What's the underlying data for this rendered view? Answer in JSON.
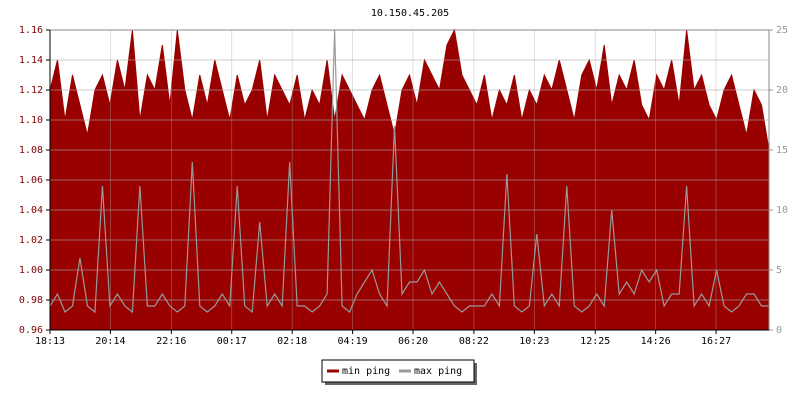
{
  "chart_data": {
    "type": "area-line",
    "title": "10.150.45.205",
    "x": [
      0,
      15,
      30,
      45,
      60,
      75,
      90,
      105,
      120,
      135,
      150,
      165,
      180,
      195,
      210,
      225,
      240,
      255,
      270,
      285,
      300,
      315,
      330,
      345,
      360,
      375,
      390,
      405,
      420,
      435,
      450,
      465,
      480,
      495,
      510,
      525,
      540,
      555,
      570,
      585,
      600,
      615,
      630,
      645,
      660,
      675,
      690,
      705,
      720,
      735,
      750,
      765,
      780,
      795,
      810,
      825,
      840,
      855,
      870,
      885,
      900,
      915,
      930,
      945,
      960,
      975,
      990,
      1005,
      1020,
      1035,
      1050,
      1065,
      1080,
      1095,
      1110,
      1125,
      1140,
      1155,
      1170,
      1185,
      1200,
      1215,
      1230,
      1245,
      1260,
      1275,
      1290,
      1305,
      1320,
      1335,
      1350,
      1365,
      1380,
      1395,
      1410,
      1425,
      1440
    ],
    "xlim": [
      0,
      1440
    ],
    "xticks": [
      {
        "value": 0,
        "label": "18:13"
      },
      {
        "value": 121,
        "label": "20:14"
      },
      {
        "value": 243,
        "label": "22:16"
      },
      {
        "value": 364,
        "label": "00:17"
      },
      {
        "value": 485,
        "label": "02:18"
      },
      {
        "value": 606,
        "label": "04:19"
      },
      {
        "value": 727,
        "label": "06:20"
      },
      {
        "value": 849,
        "label": "08:22"
      },
      {
        "value": 970,
        "label": "10:23"
      },
      {
        "value": 1092,
        "label": "12:25"
      },
      {
        "value": 1213,
        "label": "14:26"
      },
      {
        "value": 1334,
        "label": "16:27"
      }
    ],
    "ylim": [
      0.96,
      1.16
    ],
    "yticks": [
      0.96,
      0.98,
      {
        "value": 1,
        "label": "1.00"
      },
      1.02,
      1.04,
      1.06,
      1.08,
      {
        "value": 1.1,
        "label": "1.10"
      },
      1.12,
      1.14,
      1.16
    ],
    "y2lim": [
      0,
      25
    ],
    "y2ticks": [
      0,
      5,
      10,
      15,
      20,
      25
    ],
    "grid": true,
    "legend": "bottom",
    "series": [
      {
        "name": "min ping",
        "color": "#990000",
        "kind": "area",
        "values": [
          1.12,
          1.14,
          1.1,
          1.13,
          1.11,
          1.09,
          1.12,
          1.13,
          1.11,
          1.14,
          1.12,
          1.16,
          1.1,
          1.13,
          1.12,
          1.15,
          1.11,
          1.16,
          1.12,
          1.1,
          1.13,
          1.11,
          1.14,
          1.12,
          1.1,
          1.13,
          1.11,
          1.12,
          1.14,
          1.1,
          1.13,
          1.12,
          1.11,
          1.13,
          1.1,
          1.12,
          1.11,
          1.14,
          1.1,
          1.13,
          1.12,
          1.11,
          1.1,
          1.12,
          1.13,
          1.11,
          1.09,
          1.12,
          1.13,
          1.11,
          1.14,
          1.13,
          1.12,
          1.15,
          1.16,
          1.13,
          1.12,
          1.11,
          1.13,
          1.1,
          1.12,
          1.11,
          1.13,
          1.1,
          1.12,
          1.11,
          1.13,
          1.12,
          1.14,
          1.12,
          1.1,
          1.13,
          1.14,
          1.12,
          1.15,
          1.11,
          1.13,
          1.12,
          1.14,
          1.11,
          1.1,
          1.13,
          1.12,
          1.14,
          1.11,
          1.16,
          1.12,
          1.13,
          1.11,
          1.1,
          1.12,
          1.13,
          1.11,
          1.09,
          1.12,
          1.11,
          1.08
        ]
      },
      {
        "name": "max ping",
        "color": "#999999",
        "kind": "line",
        "axis": "y2",
        "values": [
          2,
          3,
          1.5,
          2,
          6,
          2,
          1.5,
          12,
          2,
          3,
          2,
          1.5,
          12,
          2,
          2,
          3,
          2,
          1.5,
          2,
          14,
          2,
          1.5,
          2,
          3,
          2,
          12,
          2,
          1.5,
          9,
          2,
          3,
          2,
          14,
          2,
          2,
          1.5,
          2,
          3,
          25,
          2,
          1.5,
          3,
          4,
          5,
          3,
          2,
          17,
          3,
          4,
          4,
          5,
          3,
          4,
          3,
          2,
          1.5,
          2,
          2,
          2,
          3,
          2,
          13,
          2,
          1.5,
          2,
          8,
          2,
          3,
          2,
          12,
          2,
          1.5,
          2,
          3,
          2,
          10,
          3,
          4,
          3,
          5,
          4,
          5,
          2,
          3,
          3,
          12,
          2,
          3,
          2,
          5,
          2,
          1.5,
          2,
          3,
          3,
          2,
          2
        ]
      }
    ]
  }
}
